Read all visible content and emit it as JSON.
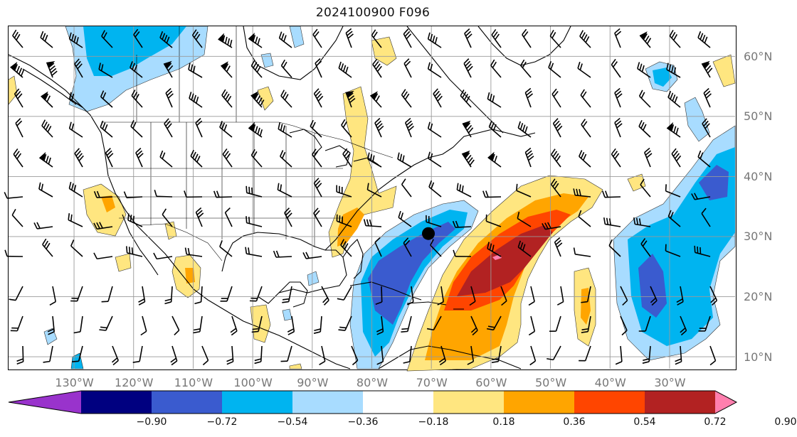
{
  "title": "2024100900 F096",
  "lat_labels": [
    {
      "label": "60°N",
      "lat": 60
    },
    {
      "label": "50°N",
      "lat": 50
    },
    {
      "label": "40°N",
      "lat": 40
    },
    {
      "label": "30°N",
      "lat": 30
    },
    {
      "label": "20°N",
      "lat": 20
    },
    {
      "label": "10°N",
      "lat": 10
    }
  ],
  "lon_labels": [
    {
      "label": "130°W",
      "lon": -130
    },
    {
      "label": "120°W",
      "lon": -120
    },
    {
      "label": "110°W",
      "lon": -110
    },
    {
      "label": "100°W",
      "lon": -100
    },
    {
      "label": "90°W",
      "lon": -90
    },
    {
      "label": "80°W",
      "lon": -80
    },
    {
      "label": "70°W",
      "lon": -70
    },
    {
      "label": "60°W",
      "lon": -60
    },
    {
      "label": "50°W",
      "lon": -50
    },
    {
      "label": "40°W",
      "lon": -40
    },
    {
      "label": "30°W",
      "lon": -30
    }
  ],
  "map_extent": {
    "lon_min": -141,
    "lon_max": -19,
    "lat_min": 8,
    "lat_max": 65
  },
  "colorbar": {
    "ticks": [
      "−0.90",
      "−0.72",
      "−0.54",
      "−0.36",
      "−0.18",
      "0.18",
      "0.36",
      "0.54",
      "0.72",
      "0.90"
    ],
    "colors": {
      "under": "#9933cc",
      "b1": "#000080",
      "b2": "#3a5bcf",
      "b3": "#00b4f0",
      "b4": "#a8dcff",
      "b5": "#ffffff",
      "b6": "#ffe680",
      "b7": "#ffa500",
      "b8": "#ff4500",
      "b9": "#b22222",
      "over": "#ff7fae"
    }
  },
  "storm_marker": {
    "lon": -70.5,
    "lat": 30.5,
    "color": "#000000"
  }
}
